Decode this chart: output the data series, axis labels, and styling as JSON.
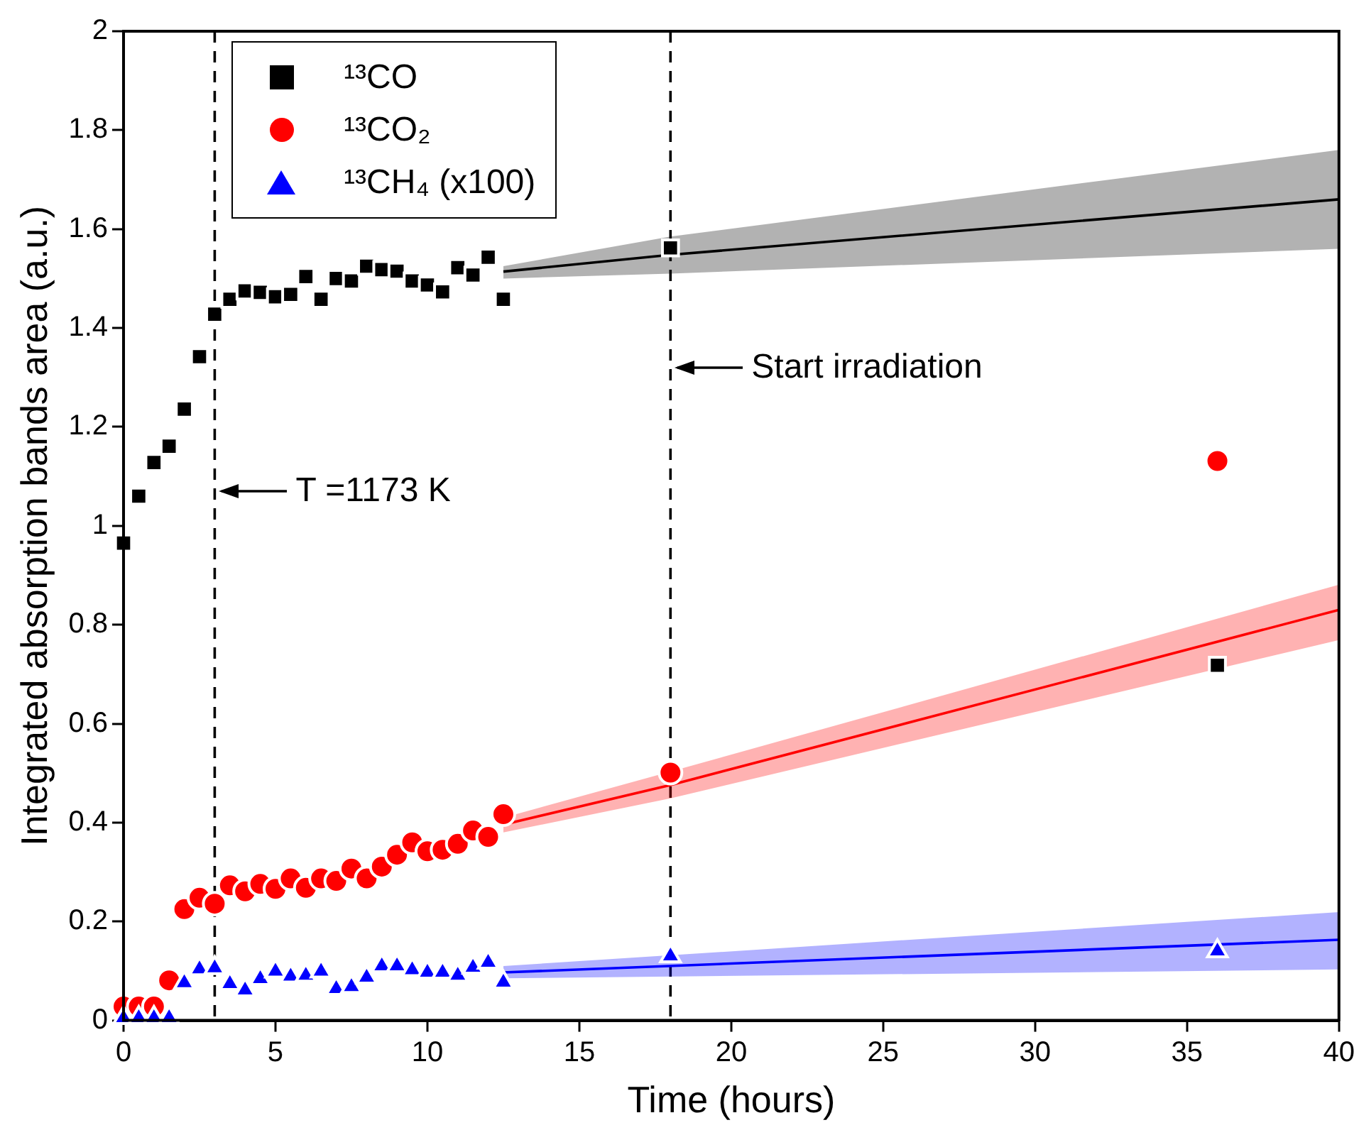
{
  "chart_data": {
    "type": "scatter",
    "xlabel": "Time (hours)",
    "ylabel": "Integrated absorption bands area (a.u.)",
    "xlim": [
      0,
      40
    ],
    "xticks": [
      0,
      5,
      10,
      15,
      20,
      25,
      30,
      35,
      40
    ],
    "ylim": [
      0,
      2
    ],
    "yticks": [
      0,
      0.2,
      0.4,
      0.6,
      0.8,
      1,
      1.2,
      1.4,
      1.6,
      1.8,
      2
    ],
    "grid": false,
    "legend": "top left",
    "x": [
      0,
      0.5,
      1,
      1.5,
      2,
      2.5,
      3,
      3.5,
      4,
      4.5,
      5,
      5.5,
      6,
      6.5,
      7,
      7.5,
      8,
      8.5,
      9,
      9.5,
      10,
      10.5,
      11,
      11.5,
      12,
      12.5,
      18,
      36
    ],
    "series": [
      {
        "name": "¹³CO",
        "marker": "square",
        "color": "#000000",
        "values": [
          0.965,
          1.06,
          1.128,
          1.161,
          1.236,
          1.342,
          1.428,
          1.458,
          1.475,
          1.472,
          1.463,
          1.468,
          1.504,
          1.458,
          1.5,
          1.495,
          1.525,
          1.518,
          1.515,
          1.495,
          1.487,
          1.473,
          1.522,
          1.507,
          1.543,
          1.458,
          1.562,
          0.718
        ]
      },
      {
        "name": "¹³CO₂",
        "marker": "circle",
        "color": "#ff0000",
        "values": [
          0.028,
          0.028,
          0.028,
          0.081,
          0.225,
          0.248,
          0.236,
          0.273,
          0.261,
          0.276,
          0.266,
          0.287,
          0.268,
          0.287,
          0.282,
          0.307,
          0.287,
          0.311,
          0.335,
          0.36,
          0.342,
          0.345,
          0.357,
          0.384,
          0.371,
          0.417,
          0.501,
          1.131
        ]
      },
      {
        "name": "¹³CH₄ (x100)",
        "marker": "triangle",
        "color": "#0000ff",
        "values": [
          0.005,
          0.005,
          0.005,
          0.005,
          0.076,
          0.104,
          0.106,
          0.074,
          0.061,
          0.084,
          0.099,
          0.089,
          0.091,
          0.099,
          0.064,
          0.068,
          0.087,
          0.11,
          0.11,
          0.102,
          0.097,
          0.097,
          0.091,
          0.107,
          0.117,
          0.077,
          0.13,
          0.14
        ]
      },
      {
        "type": "line",
        "marker": "none",
        "color": "#000000",
        "x": [
          12.5,
          18,
          40
        ],
        "values": [
          1.514,
          1.548,
          1.66
        ],
        "lower": [
          1.5,
          1.51,
          1.56
        ],
        "upper": [
          1.525,
          1.585,
          1.76
        ]
      },
      {
        "type": "line",
        "marker": "none",
        "color": "#ff0000",
        "x": [
          12.5,
          18,
          40
        ],
        "values": [
          0.396,
          0.476,
          0.83
        ],
        "lower": [
          0.38,
          0.449,
          0.769
        ],
        "upper": [
          0.41,
          0.503,
          0.881
        ]
      },
      {
        "type": "line",
        "marker": "none",
        "color": "#0000ff",
        "x": [
          12.5,
          40
        ],
        "values": [
          0.097,
          0.163
        ],
        "lower": [
          0.085,
          0.103
        ],
        "upper": [
          0.11,
          0.219
        ]
      }
    ],
    "ref_lines": [
      {
        "axis": "x",
        "value": 3,
        "color": "#000000",
        "line_style": "dashed"
      },
      {
        "axis": "x",
        "value": 18,
        "color": "#000000",
        "line_style": "dashed"
      }
    ],
    "annotations": [
      {
        "text": "T =1173 K",
        "x": 3,
        "y": 1.07
      },
      {
        "text": "Start irradiation",
        "x": 18,
        "y": 1.32
      }
    ]
  }
}
